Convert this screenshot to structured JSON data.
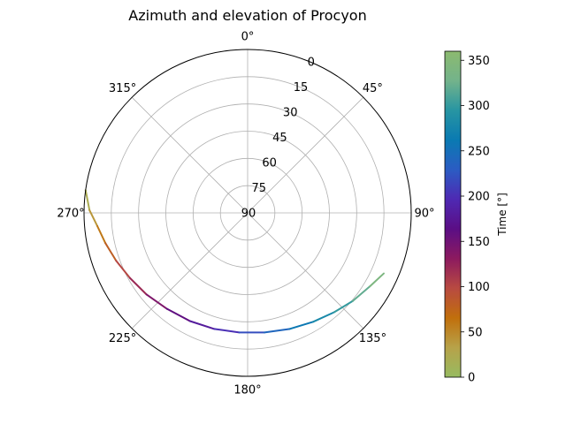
{
  "chart_data": {
    "type": "polar-line",
    "title": "Azimuth and elevation of Procyon",
    "theta_zero": "N",
    "theta_direction": "clockwise",
    "angle_ticks": [
      "0°",
      "45°",
      "90°",
      "135°",
      "180°",
      "225°",
      "270°",
      "315°"
    ],
    "angle_tick_values": [
      0,
      45,
      90,
      135,
      180,
      225,
      270,
      315
    ],
    "radial_ticks": [
      "0",
      "15",
      "30",
      "45",
      "60",
      "75",
      "90"
    ],
    "radial_tick_values": [
      0,
      15,
      30,
      45,
      60,
      75,
      90
    ],
    "radial_range": [
      90,
      0
    ],
    "grid": true,
    "series": [
      {
        "azimuth_deg": [
          278,
          271,
          265,
          258,
          250,
          241,
          231,
          220,
          208,
          196,
          184,
          172,
          160,
          149,
          139,
          130,
          121,
          114
        ],
        "elevation_deg": [
          0,
          3,
          7,
          10,
          13,
          16,
          18.5,
          21,
          22.5,
          23.5,
          24,
          23.5,
          22,
          20,
          17.5,
          14.5,
          11.5,
          8
        ],
        "time_deg": [
          10,
          30,
          50,
          70,
          90,
          110,
          130,
          150,
          170,
          190,
          210,
          230,
          250,
          270,
          290,
          310,
          330,
          350
        ]
      }
    ],
    "colorbar": {
      "label": "Time [°]",
      "ticks": [
        "0",
        "50",
        "100",
        "150",
        "200",
        "250",
        "300",
        "350"
      ],
      "tick_values": [
        0,
        50,
        100,
        150,
        200,
        250,
        300,
        350
      ],
      "range": [
        0,
        360
      ],
      "colormap": [
        "#97bb61",
        "#b7a249",
        "#c16f0c",
        "#b84a41",
        "#8c1a5f",
        "#5b0e85",
        "#4e29b3",
        "#2b5cc3",
        "#0a7ab2",
        "#2795a2",
        "#73b38b",
        "#8cba6f"
      ]
    }
  }
}
